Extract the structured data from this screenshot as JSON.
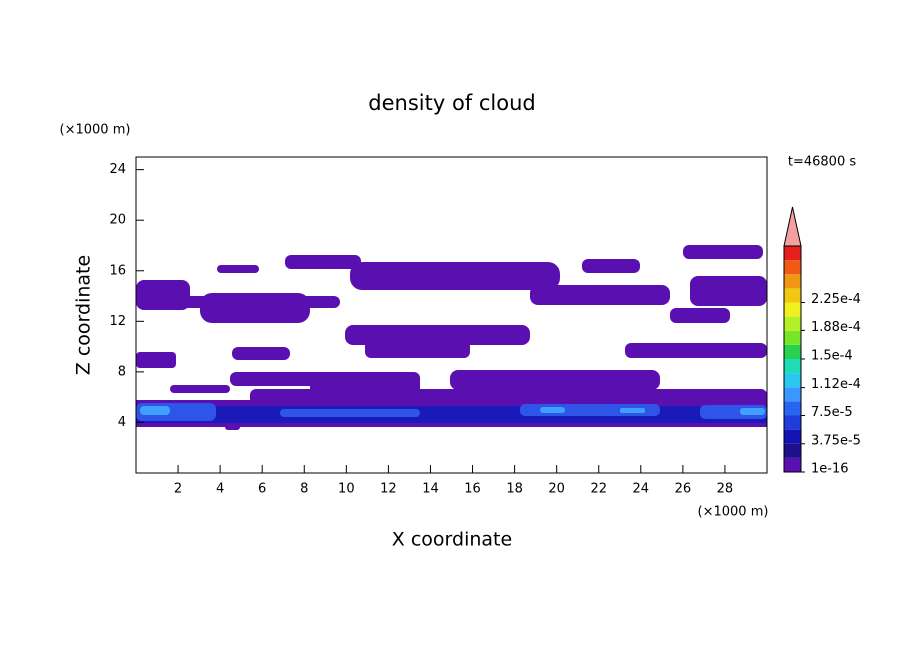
{
  "chart_data": {
    "type": "contour",
    "title": "density of cloud",
    "x_label": "X coordinate",
    "y_label": "Z coordinate",
    "x_unit": "(×1000 m)",
    "y_unit": "(×1000 m)",
    "annotation": "t=46800 s",
    "xlim": [
      0,
      30
    ],
    "ylim": [
      0,
      25
    ],
    "xticks": [
      2,
      4,
      6,
      8,
      10,
      12,
      14,
      16,
      18,
      20,
      22,
      24,
      26,
      28
    ],
    "yticks": [
      4,
      8,
      12,
      16,
      20,
      24
    ],
    "colorbar": {
      "clim": [
        1e-16,
        0.0003
      ],
      "ticks": [
        1e-16,
        {
          "value": 3.75e-05,
          "label": "3.75e-5"
        },
        {
          "value": 7.5e-05,
          "label": "7.5e-5"
        },
        {
          "value": 0.000112,
          "label": "1.12e-4"
        },
        {
          "value": 0.00015,
          "label": "1.5e-4"
        },
        {
          "value": 0.000188,
          "label": "1.88e-4"
        },
        {
          "value": 0.000225,
          "label": "2.25e-4"
        }
      ],
      "colors": [
        "#5a0fb0",
        "#1e0f8c",
        "#1414b4",
        "#1e3cdc",
        "#2864f0",
        "#3c96ff",
        "#28c8f0",
        "#1edcb4",
        "#28d250",
        "#78e628",
        "#b4f028",
        "#f0f01e",
        "#f0c814",
        "#f09614",
        "#f05a14",
        "#e61e1e"
      ],
      "extend_color": "#f4a0a0"
    }
  }
}
